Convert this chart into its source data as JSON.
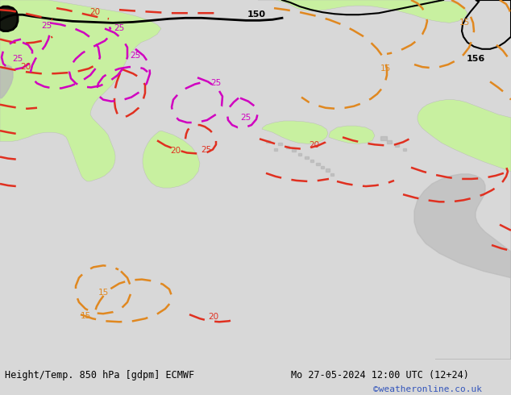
{
  "title_left": "Height/Temp. 850 hPa [gdpm] ECMWF",
  "title_right": "Mo 27-05-2024 12:00 UTC (12+24)",
  "watermark": "©weatheronline.co.uk",
  "bg_color": "#d8d8d8",
  "land_green_color": "#c8f0a0",
  "land_gray_color": "#b8b8b8",
  "sea_color": "#d8d8d8",
  "contour_red_color": "#e03020",
  "contour_orange_color": "#e08820",
  "contour_magenta_color": "#d000c0",
  "contour_black_color": "#000000",
  "title_fontsize": 8.5,
  "watermark_color": "#3355bb",
  "figsize": [
    6.34,
    4.9
  ],
  "dpi": 100
}
